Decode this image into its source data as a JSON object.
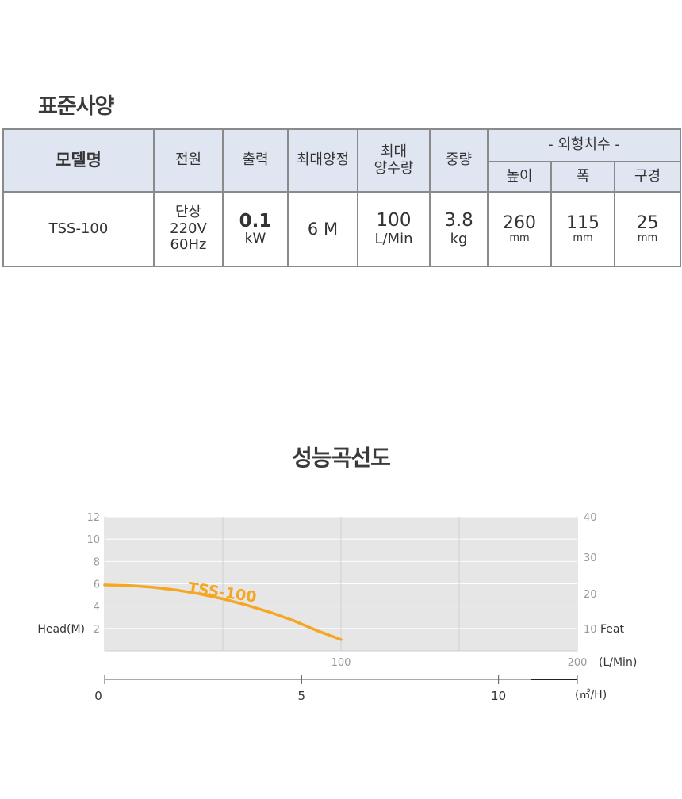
{
  "spec": {
    "title": "표준사양",
    "headers": {
      "model": "모델명",
      "power": "전원",
      "output": "출력",
      "max_head": "최대양정",
      "max_flow_1": "최대",
      "max_flow_2": "양수량",
      "weight": "중량",
      "dimensions": "- 외형치수 -",
      "height": "높이",
      "width": "폭",
      "bore": "구경"
    },
    "row": {
      "model": "TSS-100",
      "power_1": "단상",
      "power_2": "220V",
      "power_3": "60Hz",
      "output_value": "0.1",
      "output_unit": "kW",
      "max_head": "6 M",
      "max_flow_value": "100",
      "max_flow_unit": "L/Min",
      "weight_value": "3.8",
      "weight_unit": "kg",
      "height_value": "260",
      "height_unit": "mm",
      "width_value": "115",
      "width_unit": "mm",
      "bore_value": "25",
      "bore_unit": "mm"
    }
  },
  "chart_title": "성능곡선도",
  "chart_data": {
    "type": "line",
    "series": [
      {
        "name": "TSS-100",
        "color": "#f5a623",
        "x": [
          0,
          10,
          20,
          30,
          40,
          50,
          60,
          70,
          80,
          90,
          100
        ],
        "y": [
          5.9,
          5.85,
          5.7,
          5.45,
          5.1,
          4.65,
          4.1,
          3.45,
          2.7,
          1.8,
          1.0
        ]
      }
    ],
    "x_unit_label": "(L/Min)",
    "x_ticks": [
      "100",
      "200"
    ],
    "xlim": [
      0,
      200
    ],
    "y_left_label": "Head(M)",
    "y_left_ticks": [
      "2",
      "4",
      "6",
      "8",
      "10",
      "12"
    ],
    "ylim": [
      0,
      12
    ],
    "y_right_label": "Feat",
    "y_right_ticks": [
      "10",
      "20",
      "30",
      "40"
    ],
    "secondary_x_unit_label": "(㎥/H)",
    "secondary_x_ticks": [
      "0",
      "5",
      "10"
    ],
    "secondary_xlim": [
      0,
      12
    ],
    "grid": true,
    "colors": {
      "plot_bg": "#e6e6e6",
      "grid": "#ffffff",
      "curve": "#f5a623"
    }
  }
}
